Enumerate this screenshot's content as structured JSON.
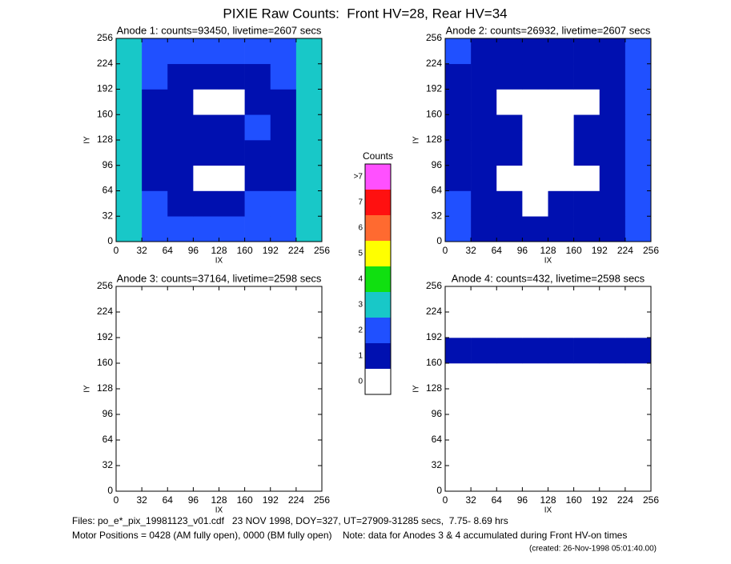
{
  "title": "PIXIE Raw Counts:  Front HV=28, Rear HV=34",
  "chart_data": [
    {
      "type": "heatmap",
      "title": "Anode 1: counts=93450, livetime=2607 secs",
      "xlabel": "IX",
      "ylabel": "IY",
      "xlim": [
        0,
        256
      ],
      "ylim": [
        0,
        256
      ],
      "xticks": [
        0,
        32,
        64,
        96,
        128,
        160,
        192,
        224,
        256
      ],
      "yticks": [
        0,
        32,
        64,
        96,
        128,
        160,
        192,
        224,
        256
      ],
      "z": [
        [
          3,
          2,
          2,
          2,
          2,
          2,
          2,
          3
        ],
        [
          3,
          2,
          1,
          1,
          1,
          2,
          2,
          3
        ],
        [
          3,
          1,
          1,
          0,
          0,
          1,
          1,
          3
        ],
        [
          3,
          1,
          1,
          1,
          1,
          1,
          1,
          3
        ],
        [
          3,
          1,
          1,
          1,
          1,
          2,
          1,
          3
        ],
        [
          3,
          1,
          1,
          0,
          0,
          1,
          1,
          3
        ],
        [
          3,
          2,
          1,
          1,
          1,
          1,
          2,
          3
        ],
        [
          3,
          2,
          2,
          2,
          2,
          2,
          2,
          3
        ]
      ]
    },
    {
      "type": "heatmap",
      "title": "Anode 2: counts=26932, livetime=2607 secs",
      "xlabel": "IX",
      "ylabel": "IY",
      "xlim": [
        0,
        256
      ],
      "ylim": [
        0,
        256
      ],
      "xticks": [
        0,
        32,
        64,
        96,
        128,
        160,
        192,
        224,
        256
      ],
      "yticks": [
        0,
        32,
        64,
        96,
        128,
        160,
        192,
        224,
        256
      ],
      "z": [
        [
          2,
          1,
          1,
          1,
          1,
          1,
          1,
          2
        ],
        [
          2,
          1,
          1,
          0,
          1,
          1,
          1,
          2
        ],
        [
          1,
          1,
          0,
          0,
          0,
          0,
          1,
          2
        ],
        [
          1,
          1,
          1,
          0,
          0,
          1,
          1,
          2
        ],
        [
          1,
          1,
          1,
          0,
          0,
          1,
          1,
          2
        ],
        [
          1,
          1,
          0,
          0,
          0,
          0,
          1,
          2
        ],
        [
          1,
          1,
          1,
          1,
          1,
          1,
          1,
          2
        ],
        [
          2,
          1,
          1,
          1,
          1,
          1,
          1,
          2
        ]
      ]
    },
    {
      "type": "heatmap",
      "title": "Anode 3: counts=37164, livetime=2598 secs",
      "xlabel": "IX",
      "ylabel": "IY",
      "xlim": [
        0,
        256
      ],
      "ylim": [
        0,
        256
      ],
      "xticks": [
        0,
        32,
        64,
        96,
        128,
        160,
        192,
        224,
        256
      ],
      "yticks": [
        0,
        32,
        64,
        96,
        128,
        160,
        192,
        224,
        256
      ],
      "z": [
        [
          0,
          0,
          0,
          0,
          0,
          0,
          0,
          0
        ],
        [
          0,
          0,
          0,
          0,
          0,
          0,
          0,
          0
        ],
        [
          0,
          0,
          0,
          0,
          0,
          0,
          0,
          0
        ],
        [
          0,
          0,
          0,
          0,
          0,
          0,
          0,
          0
        ],
        [
          0,
          0,
          0,
          0,
          0,
          0,
          0,
          0
        ],
        [
          0,
          0,
          0,
          0,
          0,
          0,
          0,
          0
        ],
        [
          0,
          0,
          0,
          0,
          0,
          0,
          0,
          0
        ],
        [
          0,
          0,
          0,
          0,
          0,
          0,
          0,
          0
        ]
      ]
    },
    {
      "type": "heatmap",
      "title": "Anode 4: counts=432, livetime=2598 secs",
      "xlabel": "IX",
      "ylabel": "IY",
      "xlim": [
        0,
        256
      ],
      "ylim": [
        0,
        256
      ],
      "xticks": [
        0,
        32,
        64,
        96,
        128,
        160,
        192,
        224,
        256
      ],
      "yticks": [
        0,
        32,
        64,
        96,
        128,
        160,
        192,
        224,
        256
      ],
      "z": [
        [
          0,
          0,
          0,
          0,
          0,
          0,
          0,
          0
        ],
        [
          0,
          0,
          0,
          0,
          0,
          0,
          0,
          0
        ],
        [
          0,
          0,
          0,
          0,
          0,
          0,
          0,
          0
        ],
        [
          0,
          0,
          0,
          0,
          0,
          0,
          0,
          0
        ],
        [
          0,
          0,
          0,
          0,
          0,
          0,
          0,
          0
        ],
        [
          1,
          1,
          1,
          1,
          1,
          1,
          1,
          1
        ],
        [
          0,
          0,
          0,
          0,
          0,
          0,
          0,
          0
        ],
        [
          0,
          0,
          0,
          0,
          0,
          0,
          0,
          0
        ]
      ]
    }
  ],
  "colorbar": {
    "title": "Counts",
    "labels": [
      "0",
      "1",
      "2",
      "3",
      "4",
      "5",
      "6",
      "7",
      ">7"
    ],
    "colors": [
      "#ffffff",
      "#0010b0",
      "#2050ff",
      "#18c8c8",
      "#10e010",
      "#ffff00",
      "#ff6a30",
      "#ff1010",
      "#ff50ff"
    ]
  },
  "footer": [
    "Files: po_e*_pix_19981123_v01.cdf   23 NOV 1998, DOY=327, UT=27909-31285 secs,  7.75- 8.69 hrs",
    "Motor Positions = 0428 (AM fully open), 0000 (BM fully open)    Note: data for Anodes 3 & 4 accumulated during Front HV-on times",
    "(created: 26-Nov-1998 05:01:40.00)"
  ]
}
